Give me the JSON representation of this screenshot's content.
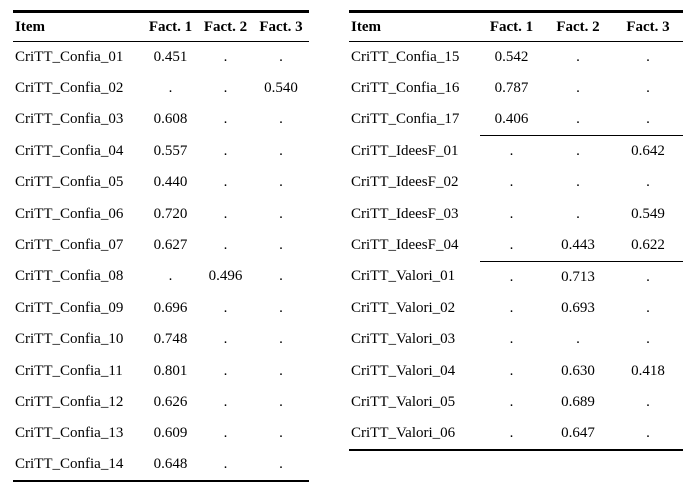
{
  "page": {
    "background": "#ffffff",
    "text_color": "#000000",
    "rule_color": "#000000"
  },
  "left_table": {
    "headers": {
      "item": "Item",
      "f1": "Fact. 1",
      "f2": "Fact. 2",
      "f3": "Fact. 3"
    },
    "rows": [
      {
        "item": "CriTT_Confia_01",
        "f1": "0.451",
        "f2": ".",
        "f3": "."
      },
      {
        "item": "CriTT_Confia_02",
        "f1": ".",
        "f2": ".",
        "f3": "0.540"
      },
      {
        "item": "CriTT_Confia_03",
        "f1": "0.608",
        "f2": ".",
        "f3": "."
      },
      {
        "item": "CriTT_Confia_04",
        "f1": "0.557",
        "f2": ".",
        "f3": "."
      },
      {
        "item": "CriTT_Confia_05",
        "f1": "0.440",
        "f2": ".",
        "f3": "."
      },
      {
        "item": "CriTT_Confia_06",
        "f1": "0.720",
        "f2": ".",
        "f3": "."
      },
      {
        "item": "CriTT_Confia_07",
        "f1": "0.627",
        "f2": ".",
        "f3": "."
      },
      {
        "item": "CriTT_Confia_08",
        "f1": ".",
        "f2": "0.496",
        "f3": "."
      },
      {
        "item": "CriTT_Confia_09",
        "f1": "0.696",
        "f2": ".",
        "f3": "."
      },
      {
        "item": "CriTT_Confia_10",
        "f1": "0.748",
        "f2": ".",
        "f3": "."
      },
      {
        "item": "CriTT_Confia_11",
        "f1": "0.801",
        "f2": ".",
        "f3": "."
      },
      {
        "item": "CriTT_Confia_12",
        "f1": "0.626",
        "f2": ".",
        "f3": "."
      },
      {
        "item": "CriTT_Confia_13",
        "f1": "0.609",
        "f2": ".",
        "f3": "."
      },
      {
        "item": "CriTT_Confia_14",
        "f1": "0.648",
        "f2": ".",
        "f3": "."
      }
    ]
  },
  "right_table": {
    "headers": {
      "item": "Item",
      "f1": "Fact. 1",
      "f2": "Fact. 2",
      "f3": "Fact. 3"
    },
    "rows": [
      {
        "item": "CriTT_Confia_15",
        "f1": "0.542",
        "f2": ".",
        "f3": "."
      },
      {
        "item": "CriTT_Confia_16",
        "f1": "0.787",
        "f2": ".",
        "f3": "."
      },
      {
        "item": "CriTT_Confia_17",
        "f1": "0.406",
        "f2": ".",
        "f3": ".",
        "group_end": true
      },
      {
        "item": "CriTT_IdeesF_01",
        "f1": ".",
        "f2": ".",
        "f3": "0.642"
      },
      {
        "item": "CriTT_IdeesF_02",
        "f1": ".",
        "f2": ".",
        "f3": "."
      },
      {
        "item": "CriTT_IdeesF_03",
        "f1": ".",
        "f2": ".",
        "f3": "0.549"
      },
      {
        "item": "CriTT_IdeesF_04",
        "f1": ".",
        "f2": "0.443",
        "f3": "0.622",
        "group_end": true
      },
      {
        "item": "CriTT_Valori_01",
        "f1": ".",
        "f2": "0.713",
        "f3": "."
      },
      {
        "item": "CriTT_Valori_02",
        "f1": ".",
        "f2": "0.693",
        "f3": "."
      },
      {
        "item": "CriTT_Valori_03",
        "f1": ".",
        "f2": ".",
        "f3": "."
      },
      {
        "item": "CriTT_Valori_04",
        "f1": ".",
        "f2": "0.630",
        "f3": "0.418"
      },
      {
        "item": "CriTT_Valori_05",
        "f1": ".",
        "f2": "0.689",
        "f3": "."
      },
      {
        "item": "CriTT_Valori_06",
        "f1": ".",
        "f2": "0.647",
        "f3": "."
      }
    ]
  }
}
